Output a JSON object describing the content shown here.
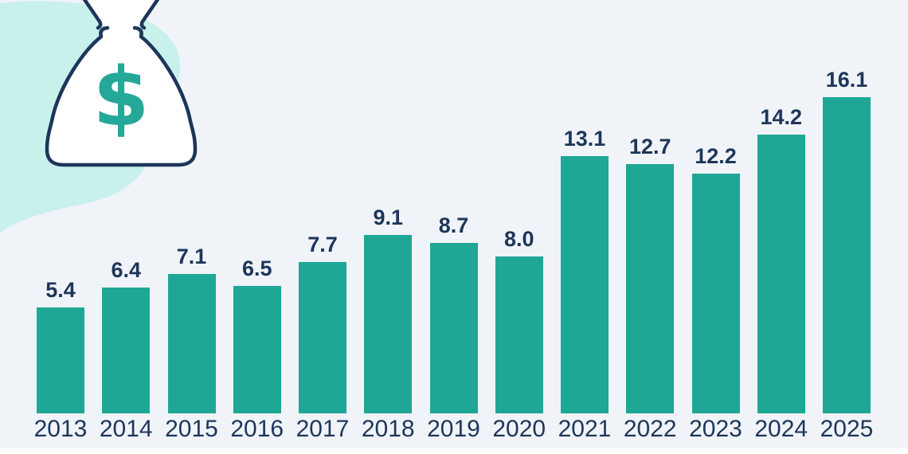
{
  "chart_data": {
    "type": "bar",
    "title": "",
    "xlabel": "",
    "ylabel": "",
    "categories": [
      "2013",
      "2014",
      "2015",
      "2016",
      "2017",
      "2018",
      "2019",
      "2020",
      "2021",
      "2022",
      "2023",
      "2024",
      "2025"
    ],
    "values": [
      5.4,
      6.4,
      7.1,
      6.5,
      7.7,
      9.1,
      8.7,
      8.0,
      13.1,
      12.7,
      12.2,
      14.2,
      16.1
    ],
    "value_labels": [
      "5.4",
      "6.4",
      "7.1",
      "6.5",
      "7.7",
      "9.1",
      "8.7",
      "8.0",
      "13.1",
      "12.7",
      "12.2",
      "14.2",
      "16.1"
    ],
    "ylim": [
      0,
      18
    ],
    "grid": false,
    "legend": null,
    "bar_color": "#1EA795",
    "label_color": "#1D3659"
  },
  "decor": {
    "money_bag_icon": "money-bag-with-dollar-sign",
    "dollar_symbol": "$",
    "background_color": "#F0F3F8",
    "blob_color": "#C8F1EC",
    "bar_color": "#1EA795",
    "text_color": "#1D3659",
    "dollar_color": "#25A897",
    "bag_fill_color": "#FFFFFF",
    "bottom_strip_color": "#FFFFFF"
  }
}
